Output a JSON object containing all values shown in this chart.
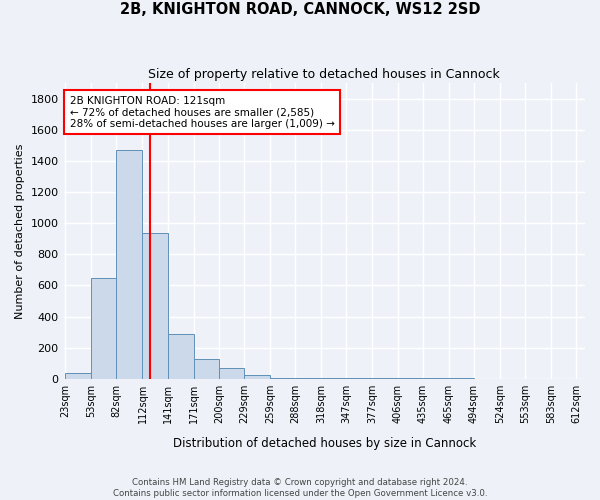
{
  "title1": "2B, KNIGHTON ROAD, CANNOCK, WS12 2SD",
  "title2": "Size of property relative to detached houses in Cannock",
  "xlabel": "Distribution of detached houses by size in Cannock",
  "ylabel": "Number of detached properties",
  "bin_edges": [
    23,
    53,
    82,
    112,
    141,
    171,
    200,
    229,
    259,
    288,
    318,
    347,
    377,
    406,
    435,
    465,
    494,
    524,
    553,
    583,
    612
  ],
  "bar_heights": [
    40,
    650,
    1470,
    940,
    290,
    130,
    70,
    25,
    5,
    5,
    5,
    5,
    5,
    5,
    5,
    5,
    0,
    0,
    0,
    0
  ],
  "bar_color": "#ccd9ea",
  "bar_edge_color": "#6090b8",
  "red_line_x": 121,
  "annotation_line1": "2B KNIGHTON ROAD: 121sqm",
  "annotation_line2": "← 72% of detached houses are smaller (2,585)",
  "annotation_line3": "28% of semi-detached houses are larger (1,009) →",
  "annotation_box_color": "white",
  "annotation_box_edgecolor": "red",
  "red_line_color": "red",
  "ylim": [
    0,
    1900
  ],
  "yticks": [
    0,
    200,
    400,
    600,
    800,
    1000,
    1200,
    1400,
    1600,
    1800
  ],
  "footer1": "Contains HM Land Registry data © Crown copyright and database right 2024.",
  "footer2": "Contains public sector information licensed under the Open Government Licence v3.0.",
  "background_color": "#eef2f8",
  "grid_color": "#ffffff"
}
